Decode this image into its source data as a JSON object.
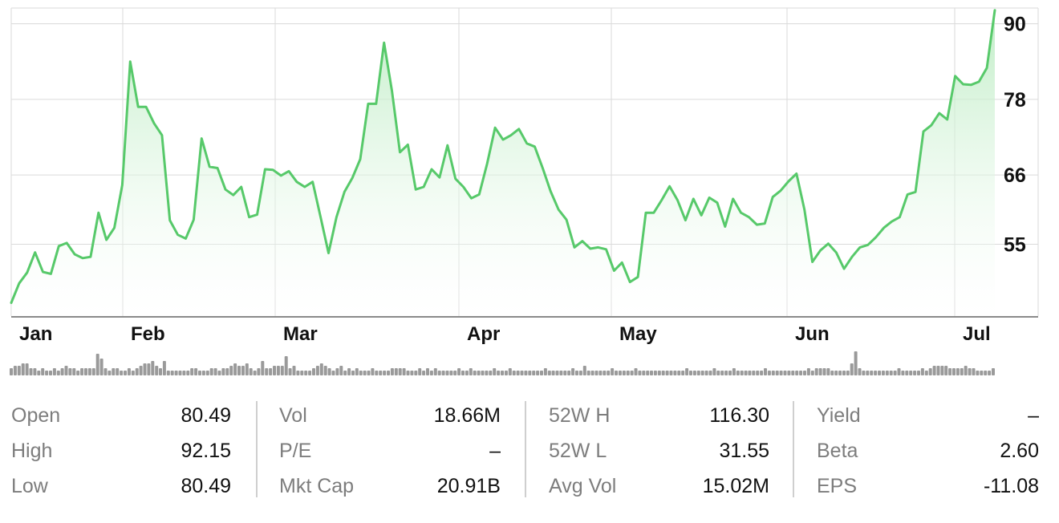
{
  "chart_data": {
    "type": "area",
    "months": [
      "Jan",
      "Feb",
      "Mar",
      "Apr",
      "May",
      "Jun",
      "Jul"
    ],
    "y_ticks": [
      55,
      66,
      78,
      90
    ],
    "ylim": [
      43.6,
      92.5
    ],
    "grid": true,
    "y_axis_side": "right",
    "values": [
      45.7,
      48.8,
      50.5,
      53.7,
      50.6,
      50.3,
      54.7,
      55.2,
      53.4,
      52.8,
      53.0,
      60.0,
      55.7,
      57.6,
      64.4,
      84.0,
      76.8,
      76.8,
      74.2,
      72.3,
      58.8,
      56.5,
      55.9,
      58.9,
      71.8,
      67.3,
      67.1,
      63.7,
      62.8,
      64.1,
      59.3,
      59.7,
      66.9,
      66.8,
      65.9,
      66.6,
      64.9,
      64.1,
      64.9,
      59.3,
      53.6,
      59.3,
      63.3,
      65.5,
      68.5,
      77.3,
      77.3,
      87.0,
      79.3,
      69.6,
      70.8,
      63.7,
      64.1,
      66.9,
      65.6,
      70.7,
      65.4,
      64.1,
      62.3,
      62.9,
      67.8,
      73.5,
      71.6,
      72.3,
      73.3,
      71.0,
      70.5,
      67.1,
      63.4,
      60.5,
      58.9,
      54.5,
      55.5,
      54.3,
      54.5,
      54.2,
      50.8,
      52.1,
      49.0,
      49.8,
      60.0,
      60.0,
      62.0,
      64.2,
      62.0,
      58.8,
      62.2,
      59.6,
      62.4,
      61.6,
      57.8,
      62.2,
      60.0,
      59.3,
      58.1,
      58.3,
      62.5,
      63.5,
      65.0,
      66.2,
      60.5,
      52.2,
      54.0,
      55.1,
      53.7,
      51.1,
      53.0,
      54.5,
      54.9,
      56.1,
      57.6,
      58.6,
      59.3,
      62.9,
      63.3,
      72.9,
      73.9,
      75.8,
      74.8,
      81.7,
      80.4,
      80.3,
      80.8,
      83.0,
      92.15
    ],
    "volume": [
      3,
      4,
      4,
      5,
      5,
      3,
      3,
      2,
      3,
      2,
      2,
      3,
      2,
      3,
      4,
      3,
      3,
      2,
      3,
      3,
      3,
      3,
      9,
      7,
      3,
      2,
      3,
      3,
      2,
      2,
      3,
      2,
      3,
      4,
      5,
      5,
      6,
      4,
      3,
      6,
      2,
      2,
      2,
      2,
      2,
      2,
      3,
      3,
      2,
      2,
      2,
      3,
      3,
      2,
      3,
      3,
      4,
      5,
      4,
      4,
      5,
      3,
      2,
      3,
      6,
      3,
      3,
      4,
      4,
      4,
      8,
      3,
      4,
      2,
      2,
      2,
      2,
      3,
      4,
      5,
      4,
      3,
      2,
      3,
      4,
      2,
      3,
      2,
      3,
      2,
      2,
      2,
      3,
      2,
      2,
      2,
      2,
      3,
      3,
      3,
      3,
      2,
      2,
      2,
      3,
      2,
      3,
      2,
      3,
      2,
      2,
      2,
      2,
      2,
      3,
      2,
      2,
      3,
      2,
      2,
      2,
      2,
      2,
      3,
      2,
      2,
      2,
      3,
      2,
      2,
      2,
      2,
      2,
      2,
      2,
      2,
      3,
      2,
      2,
      2,
      2,
      2,
      2,
      3,
      2,
      2,
      4,
      2,
      2,
      2,
      2,
      2,
      2,
      3,
      2,
      2,
      2,
      2,
      2,
      3,
      2,
      2,
      2,
      2,
      2,
      2,
      2,
      2,
      2,
      2,
      2,
      2,
      3,
      2,
      2,
      2,
      2,
      2,
      2,
      3,
      2,
      2,
      2,
      2,
      3,
      2,
      2,
      2,
      2,
      2,
      2,
      2,
      3,
      2,
      2,
      2,
      2,
      2,
      2,
      2,
      2,
      2,
      2,
      3,
      2,
      3,
      3,
      3,
      3,
      2,
      2,
      2,
      2,
      2,
      5,
      10,
      3,
      2,
      2,
      2,
      2,
      2,
      2,
      2,
      2,
      2,
      3,
      2,
      2,
      2,
      2,
      2,
      3,
      2,
      3,
      4,
      4,
      4,
      4,
      3,
      3,
      3,
      3,
      4,
      3,
      3,
      2,
      2,
      2,
      2,
      3
    ],
    "colors": {
      "line": "#57c96a",
      "fill_top": "#b8ebbf",
      "grid": "#dadada",
      "axis": "#8a8a8a",
      "volume": "#9a9a9a",
      "text": "#111111"
    }
  },
  "stats": [
    [
      {
        "label": "Open",
        "value": "80.49"
      },
      {
        "label": "High",
        "value": "92.15"
      },
      {
        "label": "Low",
        "value": "80.49"
      }
    ],
    [
      {
        "label": "Vol",
        "value": "18.66M"
      },
      {
        "label": "P/E",
        "value": "–"
      },
      {
        "label": "Mkt Cap",
        "value": "20.91B"
      }
    ],
    [
      {
        "label": "52W H",
        "value": "116.30"
      },
      {
        "label": "52W L",
        "value": "31.55"
      },
      {
        "label": "Avg Vol",
        "value": "15.02M"
      }
    ],
    [
      {
        "label": "Yield",
        "value": "–"
      },
      {
        "label": "Beta",
        "value": "2.60"
      },
      {
        "label": "EPS",
        "value": "-11.08"
      }
    ]
  ],
  "label_color": "#7d7d7d"
}
